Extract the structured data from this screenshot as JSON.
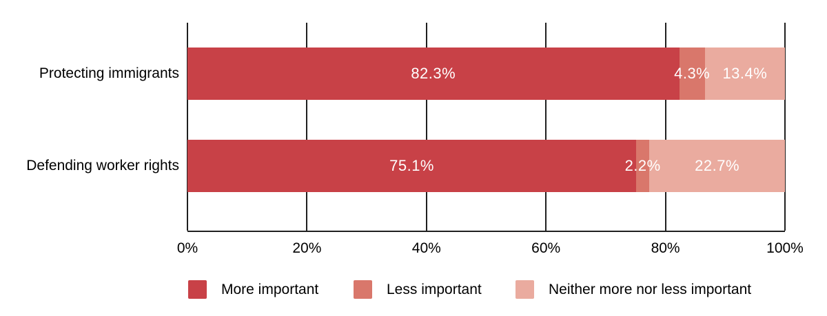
{
  "chart_data": {
    "type": "bar",
    "orientation": "horizontal",
    "stacked": true,
    "title": "",
    "categories": [
      "Protecting immigrants",
      "Defending worker rights"
    ],
    "series": [
      {
        "name": "More important",
        "color": "#c84147",
        "values": [
          82.3,
          75.1
        ],
        "labels": [
          "82.3%",
          "75.1%"
        ]
      },
      {
        "name": "Less important",
        "color": "#d9776b",
        "values": [
          4.3,
          2.2
        ],
        "labels": [
          "4.3%",
          "2.2%"
        ]
      },
      {
        "name": "Neither more nor less important",
        "color": "#eaab9f",
        "values": [
          13.4,
          22.7
        ],
        "labels": [
          "13.4%",
          "22.7%"
        ]
      }
    ],
    "x_ticks": [
      "0%",
      "20%",
      "40%",
      "60%",
      "80%",
      "100%"
    ],
    "xlim": [
      0,
      100
    ],
    "grid": true,
    "legend_position": "bottom",
    "colors": {
      "axis": "#1f1f1f",
      "text": "#000000",
      "value_label": "#ffffff",
      "background": "#ffffff"
    }
  }
}
